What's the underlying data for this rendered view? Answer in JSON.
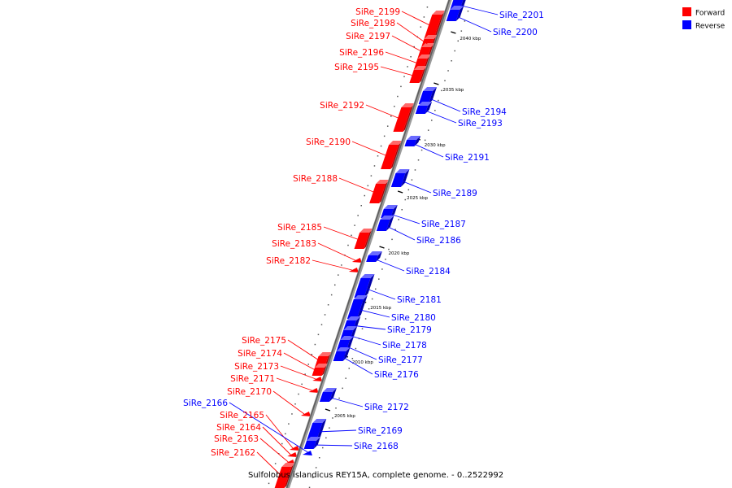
{
  "caption": "Sulfolobus islandicus REY15A, complete genome. - 0..2522992",
  "colors": {
    "forward": "#ff0000",
    "forward_dark": "#b00000",
    "forward_light": "#ff6a6a",
    "reverse": "#0000ff",
    "reverse_dark": "#0000a8",
    "reverse_light": "#6a6aff",
    "backbone": "#777777"
  },
  "legend": [
    {
      "label": "Forward",
      "strand": "forward"
    },
    {
      "label": "Reverse",
      "strand": "reverse"
    }
  ],
  "kbp_labels": [
    "2040 kbp",
    "2035 kbp",
    "2030 kbp",
    "2025 kbp",
    "2020 kbp",
    "2015 kbp",
    "2010 kbp",
    "2005 kbp"
  ],
  "forward_genes": [
    "SiRe_2199",
    "SiRe_2198",
    "SiRe_2197",
    "SiRe_2196",
    "SiRe_2195",
    "SiRe_2192",
    "SiRe_2190",
    "SiRe_2188",
    "SiRe_2185",
    "SiRe_2183",
    "SiRe_2182",
    "SiRe_2175",
    "SiRe_2174",
    "SiRe_2173",
    "SiRe_2171",
    "SiRe_2170",
    "SiRe_2165",
    "SiRe_2164",
    "SiRe_2163",
    "SiRe_2162"
  ],
  "reverse_genes": [
    "SiRe_2201",
    "SiRe_2200",
    "SiRe_2194",
    "SiRe_2193",
    "SiRe_2191",
    "SiRe_2189",
    "SiRe_2187",
    "SiRe_2186",
    "SiRe_2184",
    "SiRe_2181",
    "SiRe_2180",
    "SiRe_2179",
    "SiRe_2178",
    "SiRe_2177",
    "SiRe_2176",
    "SiRe_2172",
    "SiRe_2169",
    "SiRe_2168",
    "SiRe_2166"
  ]
}
